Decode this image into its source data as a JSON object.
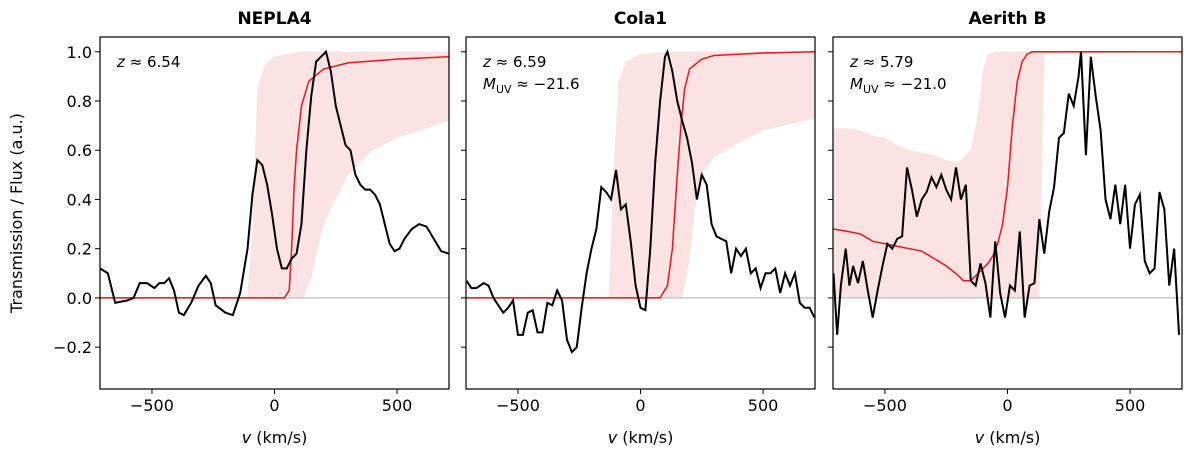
{
  "chart_data": [
    {
      "type": "line",
      "title": "NEPLA4",
      "ylabel": "Transmission / Flux (a.u.)",
      "xlabel": [
        {
          "text": "v",
          "style": "italic"
        },
        {
          "text": " (km/s)"
        }
      ],
      "annotations": [
        [
          {
            "text": "z",
            "style": "italic"
          },
          {
            "text": " ≈ 6.54"
          }
        ]
      ],
      "xlim": [
        -712,
        712
      ],
      "ylim": [
        -0.37,
        1.06
      ],
      "xticks": [
        {
          "value": -500,
          "label": "−500"
        },
        0,
        500
      ],
      "yticks": [
        {
          "value": -0.2,
          "label": "−0.2"
        },
        {
          "value": 0,
          "label": "0.0"
        },
        0.2,
        0.4,
        0.6,
        0.8,
        {
          "value": 1,
          "label": "1.0"
        }
      ],
      "hline": 0,
      "band": {
        "color": "#fbe3e3",
        "x": [
          -710,
          -110,
          -90,
          -70,
          -40,
          0,
          100,
          120,
          150,
          200,
          300,
          400,
          500,
          710
        ],
        "lower": [
          0,
          0,
          0,
          0,
          0,
          0,
          0,
          0,
          0.08,
          0.3,
          0.5,
          0.6,
          0.65,
          0.72
        ],
        "upper": [
          0,
          0,
          0.3,
          0.85,
          0.95,
          0.98,
          1,
          1,
          1,
          1,
          1,
          1,
          1,
          1
        ]
      },
      "transmission": {
        "color": "#e41a1c",
        "x": [
          -710,
          0,
          40,
          60,
          70,
          80,
          90,
          110,
          140,
          200,
          300,
          500,
          710
        ],
        "values": [
          0,
          0,
          0,
          0.03,
          0.2,
          0.45,
          0.6,
          0.78,
          0.88,
          0.93,
          0.955,
          0.97,
          0.98
        ]
      },
      "flux": {
        "color": "#000000",
        "x": [
          -712,
          -680,
          -650,
          -600,
          -575,
          -550,
          -520,
          -490,
          -470,
          -450,
          -430,
          -410,
          -390,
          -370,
          -340,
          -310,
          -280,
          -260,
          -240,
          -200,
          -170,
          -140,
          -110,
          -90,
          -70,
          -50,
          -30,
          -10,
          10,
          30,
          50,
          70,
          90,
          110,
          130,
          150,
          170,
          190,
          210,
          230,
          250,
          270,
          290,
          310,
          330,
          350,
          370,
          390,
          410,
          430,
          450,
          470,
          490,
          510,
          530,
          560,
          590,
          620,
          650,
          680,
          712
        ],
        "values": [
          0.12,
          0.1,
          -0.02,
          -0.01,
          0,
          0.06,
          0.06,
          0.04,
          0.06,
          0.06,
          0.08,
          0.03,
          -0.06,
          -0.07,
          -0.02,
          0.05,
          0.09,
          0.06,
          -0.03,
          -0.06,
          -0.07,
          0.02,
          0.2,
          0.42,
          0.56,
          0.54,
          0.46,
          0.34,
          0.2,
          0.12,
          0.12,
          0.16,
          0.18,
          0.3,
          0.6,
          0.82,
          0.96,
          0.98,
          1,
          0.92,
          0.78,
          0.7,
          0.62,
          0.6,
          0.5,
          0.46,
          0.44,
          0.44,
          0.42,
          0.38,
          0.3,
          0.22,
          0.19,
          0.2,
          0.24,
          0.28,
          0.3,
          0.29,
          0.24,
          0.19,
          0.18
        ]
      }
    },
    {
      "type": "line",
      "title": "Cola1",
      "xlabel": [
        {
          "text": "v",
          "style": "italic"
        },
        {
          "text": " (km/s)"
        }
      ],
      "annotations": [
        [
          {
            "text": "z",
            "style": "italic"
          },
          {
            "text": " ≈ 6.59"
          }
        ],
        [
          {
            "text": "M",
            "style": "italic"
          },
          {
            "text": "UV",
            "style": "sub"
          },
          {
            "text": " ≈ −21.6"
          }
        ]
      ],
      "xlim": [
        -712,
        712
      ],
      "xticks": [
        {
          "value": -500,
          "label": "−500"
        },
        0,
        500
      ],
      "hline": 0,
      "band": {
        "color": "#fbe3e3",
        "x": [
          -710,
          -130,
          -110,
          -90,
          -60,
          0,
          100,
          170,
          200,
          220,
          250,
          300,
          400,
          500,
          710
        ],
        "lower": [
          0,
          0,
          0,
          0,
          0,
          0,
          0,
          0,
          0.15,
          0.35,
          0.5,
          0.57,
          0.63,
          0.68,
          0.73
        ],
        "upper": [
          0,
          0,
          0.5,
          0.88,
          0.96,
          0.99,
          1,
          1,
          1,
          1,
          1,
          1,
          1,
          1,
          1
        ]
      },
      "transmission": {
        "color": "#e41a1c",
        "x": [
          -710,
          80,
          110,
          130,
          150,
          165,
          180,
          200,
          250,
          300,
          500,
          710
        ],
        "values": [
          0,
          0,
          0.05,
          0.2,
          0.5,
          0.7,
          0.85,
          0.93,
          0.97,
          0.985,
          0.995,
          1
        ]
      },
      "flux": {
        "color": "#000000",
        "x": [
          -710,
          -690,
          -670,
          -640,
          -620,
          -600,
          -580,
          -560,
          -540,
          -520,
          -500,
          -480,
          -460,
          -440,
          -420,
          -400,
          -380,
          -360,
          -340,
          -320,
          -300,
          -280,
          -260,
          -240,
          -220,
          -200,
          -180,
          -160,
          -140,
          -120,
          -100,
          -80,
          -60,
          -40,
          -20,
          0,
          20,
          40,
          60,
          80,
          100,
          110,
          130,
          150,
          170,
          190,
          210,
          230,
          250,
          270,
          290,
          310,
          330,
          350,
          370,
          390,
          410,
          430,
          450,
          470,
          490,
          510,
          530,
          550,
          570,
          590,
          610,
          630,
          650,
          670,
          690,
          710
        ],
        "values": [
          0.07,
          0.04,
          0.04,
          0.06,
          0.05,
          0,
          -0.03,
          -0.06,
          -0.04,
          -0.01,
          -0.15,
          -0.15,
          -0.06,
          -0.05,
          -0.14,
          -0.14,
          -0.02,
          -0.03,
          0.03,
          -0.01,
          -0.17,
          -0.22,
          -0.2,
          -0.04,
          0.1,
          0.2,
          0.28,
          0.45,
          0.43,
          0.4,
          0.52,
          0.36,
          0.38,
          0.23,
          0.05,
          -0.04,
          -0.05,
          0.2,
          0.55,
          0.8,
          0.98,
          1,
          0.92,
          0.8,
          0.72,
          0.65,
          0.55,
          0.4,
          0.5,
          0.46,
          0.3,
          0.25,
          0.24,
          0.23,
          0.1,
          0.2,
          0.17,
          0.2,
          0.1,
          0.12,
          0.04,
          0.1,
          0.1,
          0.12,
          0.02,
          0.1,
          0.05,
          0.1,
          -0.02,
          -0.04,
          -0.04,
          -0.08
        ]
      }
    },
    {
      "type": "line",
      "title": "Aerith B",
      "xlabel": [
        {
          "text": "v",
          "style": "italic"
        },
        {
          "text": " (km/s)"
        }
      ],
      "annotations": [
        [
          {
            "text": "z",
            "style": "italic"
          },
          {
            "text": " ≈ 5.79"
          }
        ],
        [
          {
            "text": "M",
            "style": "italic"
          },
          {
            "text": "UV",
            "style": "sub"
          },
          {
            "text": " ≈ −21.0"
          }
        ]
      ],
      "xlim": [
        -712,
        712
      ],
      "xticks": [
        {
          "value": -500,
          "label": "−500"
        },
        0,
        500
      ],
      "hline": 0,
      "band": {
        "color": "#fbe3e3",
        "x": [
          -712,
          -650,
          -600,
          -550,
          -500,
          -450,
          -400,
          -350,
          -300,
          -250,
          -200,
          -150,
          -120,
          -100,
          -80,
          -50,
          130,
          140,
          150,
          712
        ],
        "lower": [
          0,
          0,
          0,
          0,
          0,
          0,
          0,
          0,
          0,
          0,
          0,
          0,
          0,
          0,
          0,
          0,
          0,
          0.5,
          0.99,
          1
        ],
        "upper": [
          0.69,
          0.69,
          0.68,
          0.66,
          0.65,
          0.62,
          0.6,
          0.59,
          0.58,
          0.56,
          0.55,
          0.6,
          0.75,
          0.93,
          0.99,
          1,
          1,
          1,
          1,
          1
        ]
      },
      "transmission": {
        "color": "#e41a1c",
        "x": [
          -712,
          -650,
          -600,
          -550,
          -500,
          -450,
          -400,
          -350,
          -300,
          -250,
          -200,
          -180,
          -150,
          -120,
          -100,
          -80,
          -60,
          -40,
          -20,
          0,
          20,
          40,
          60,
          80,
          100,
          712
        ],
        "values": [
          0.28,
          0.27,
          0.26,
          0.23,
          0.22,
          0.21,
          0.2,
          0.19,
          0.16,
          0.13,
          0.09,
          0.07,
          0.07,
          0.1,
          0.12,
          0.14,
          0.17,
          0.22,
          0.3,
          0.45,
          0.7,
          0.88,
          0.96,
          0.99,
          1,
          1
        ]
      },
      "flux": {
        "color": "#000000",
        "x": [
          -710,
          -695,
          -680,
          -660,
          -645,
          -630,
          -610,
          -590,
          -570,
          -550,
          -530,
          -510,
          -490,
          -470,
          -450,
          -430,
          -410,
          -390,
          -370,
          -350,
          -330,
          -310,
          -290,
          -270,
          -250,
          -230,
          -210,
          -190,
          -170,
          -150,
          -130,
          -110,
          -90,
          -70,
          -50,
          -30,
          -10,
          10,
          30,
          50,
          70,
          90,
          110,
          130,
          150,
          170,
          190,
          210,
          230,
          250,
          270,
          290,
          300,
          320,
          340,
          360,
          380,
          400,
          420,
          440,
          460,
          480,
          500,
          520,
          540,
          560,
          580,
          600,
          620,
          640,
          660,
          680,
          700
        ],
        "values": [
          0.1,
          -0.15,
          0.05,
          0.2,
          0.05,
          0.13,
          0.06,
          0.15,
          0.03,
          -0.08,
          0.03,
          0.13,
          0.22,
          0.2,
          0.24,
          0.25,
          0.53,
          0.44,
          0.33,
          0.4,
          0.43,
          0.49,
          0.45,
          0.5,
          0.44,
          0.4,
          0.53,
          0.4,
          0.46,
          0.07,
          0.05,
          0.14,
          0.06,
          -0.08,
          0.23,
          0.02,
          -0.08,
          0.05,
          0.03,
          0.27,
          -0.08,
          0.05,
          0.06,
          0.32,
          0.18,
          0.35,
          0.45,
          0.65,
          0.67,
          0.83,
          0.78,
          0.9,
          1,
          0.58,
          0.98,
          0.82,
          0.68,
          0.4,
          0.32,
          0.46,
          0.3,
          0.46,
          0.2,
          0.38,
          0.42,
          0.15,
          0.1,
          0.12,
          0.43,
          0.36,
          0.05,
          0.2,
          -0.15
        ]
      }
    }
  ]
}
